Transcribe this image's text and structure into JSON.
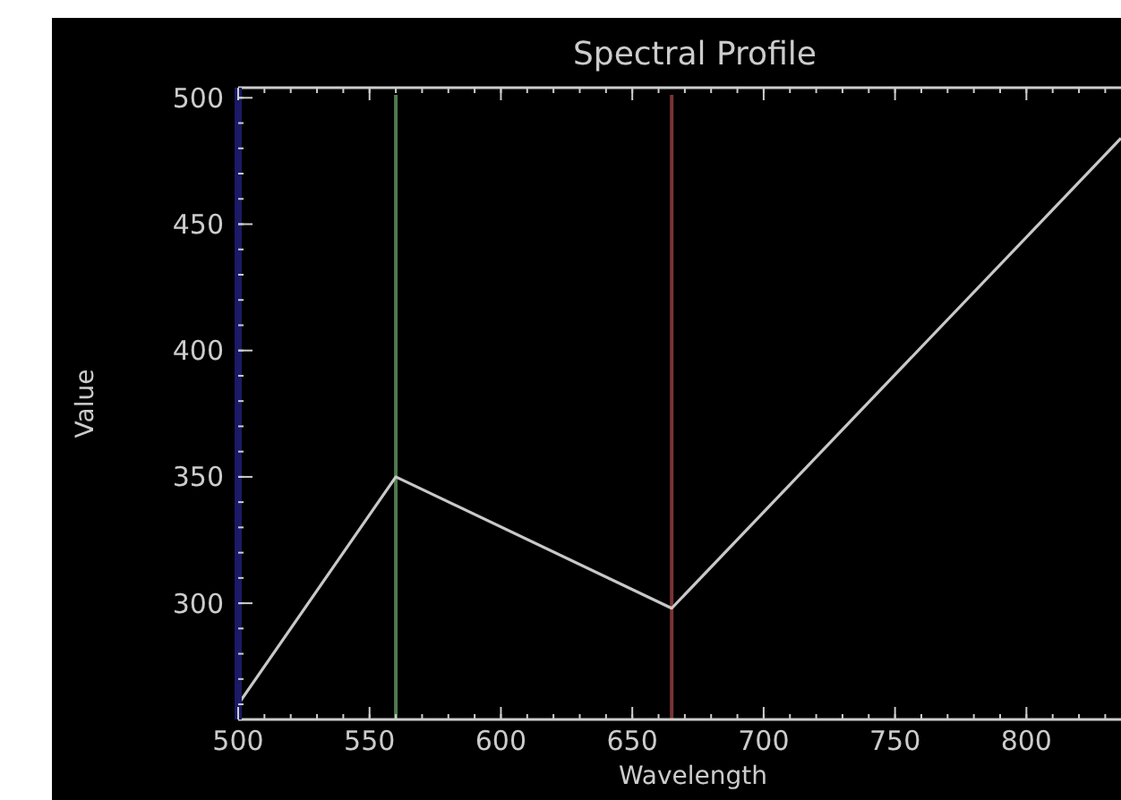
{
  "chart_data": {
    "type": "line",
    "title": "Spectral Profile",
    "xlabel": "Wavelength",
    "ylabel": "Value",
    "x": [
      500,
      560,
      665,
      836
    ],
    "series": [
      {
        "color": "#c8c8c8",
        "values": [
          260,
          350,
          298,
          484
        ]
      }
    ],
    "xlim": [
      500,
      836
    ],
    "xticks": [
      500,
      550,
      600,
      650,
      700,
      750,
      800
    ],
    "ylim": [
      254,
      504
    ],
    "yticks": [
      300,
      350,
      400,
      450,
      500
    ],
    "ref_lines": [
      {
        "axis": "x",
        "value": 560,
        "color": "#4f7a4f"
      },
      {
        "axis": "x",
        "value": 665,
        "color": "#7a3434"
      }
    ],
    "grid": false,
    "marker": "none",
    "line_style": "solid"
  }
}
